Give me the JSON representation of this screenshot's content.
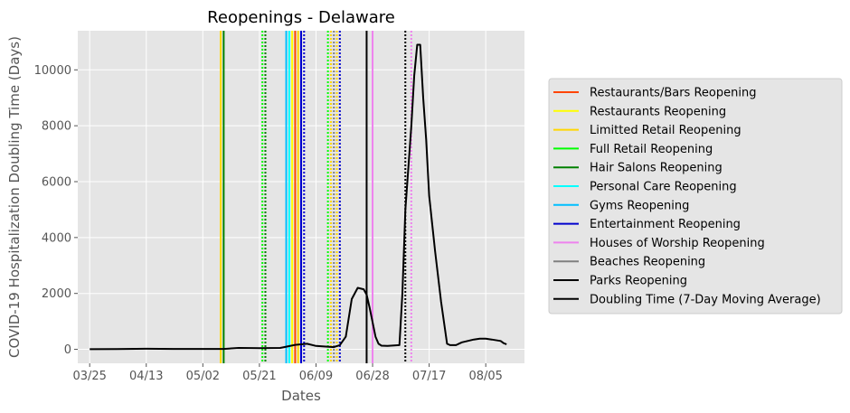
{
  "chart_data": {
    "type": "line",
    "title": "Reopenings - Delaware",
    "xlabel": "Dates",
    "ylabel": "COVID-19 Hospitalization Doubling Time (Days)",
    "x_start": "2020-03-25",
    "xlim": [
      "2020-03-21",
      "2020-08-18"
    ],
    "ylim": [
      -500,
      11400
    ],
    "x_ticks": [
      "03/25",
      "04/13",
      "05/02",
      "05/21",
      "06/09",
      "06/28",
      "07/17",
      "08/05"
    ],
    "y_ticks": [
      0,
      2000,
      4000,
      6000,
      8000,
      10000
    ],
    "grid": true,
    "legend_position": "right",
    "legend": [
      {
        "label": "Restaurants/Bars Reopening",
        "color": "#ff4500"
      },
      {
        "label": "Restaurants Reopening",
        "color": "#ffff00"
      },
      {
        "label": "Limitted Retail Reopening",
        "color": "#ffd700"
      },
      {
        "label": "Full Retail Reopening",
        "color": "#00ff00"
      },
      {
        "label": "Hair Salons Reopening",
        "color": "#008000"
      },
      {
        "label": "Personal Care Reopening",
        "color": "#00ffff"
      },
      {
        "label": "Gyms Reopening",
        "color": "#00bfff"
      },
      {
        "label": "Entertainment Reopening",
        "color": "#0000cd"
      },
      {
        "label": "Houses of Worship Reopening",
        "color": "#ee82ee"
      },
      {
        "label": "Beaches Reopening",
        "color": "#808080"
      },
      {
        "label": "Parks Reopening",
        "color": "#000000"
      },
      {
        "label": "Doubling Time (7-Day Moving Average)",
        "color": "#000000"
      }
    ],
    "vlines": [
      {
        "date": "2020-05-08",
        "color": "#ffff00",
        "style": "solid"
      },
      {
        "date": "2020-05-08",
        "color": "#ffd700",
        "style": "solid"
      },
      {
        "date": "2020-05-09",
        "color": "#008000",
        "style": "solid"
      },
      {
        "date": "2020-05-22",
        "color": "#00ff00",
        "style": "dotted"
      },
      {
        "date": "2020-05-23",
        "color": "#808000",
        "style": "dotted"
      },
      {
        "date": "2020-05-23",
        "color": "#008000",
        "style": "dotted"
      },
      {
        "date": "2020-05-30",
        "color": "#00bfff",
        "style": "solid"
      },
      {
        "date": "2020-05-31",
        "color": "#00ffff",
        "style": "solid"
      },
      {
        "date": "2020-06-01",
        "color": "#ffff00",
        "style": "solid"
      },
      {
        "date": "2020-06-02",
        "color": "#ff4500",
        "style": "solid"
      },
      {
        "date": "2020-06-03",
        "color": "#ffd700",
        "style": "solid"
      },
      {
        "date": "2020-06-04",
        "color": "#0000cd",
        "style": "solid"
      },
      {
        "date": "2020-06-05",
        "color": "#0000cd",
        "style": "dotted"
      },
      {
        "date": "2020-06-13",
        "color": "#00ff00",
        "style": "dotted"
      },
      {
        "date": "2020-06-14",
        "color": "#ffd700",
        "style": "dotted"
      },
      {
        "date": "2020-06-15",
        "color": "#808080",
        "style": "dotted"
      },
      {
        "date": "2020-06-16",
        "color": "#ffd700",
        "style": "dotted"
      },
      {
        "date": "2020-06-17",
        "color": "#0000cd",
        "style": "dotted"
      },
      {
        "date": "2020-06-26",
        "color": "#000000",
        "style": "solid"
      },
      {
        "date": "2020-06-28",
        "color": "#ee82ee",
        "style": "solid"
      },
      {
        "date": "2020-07-09",
        "color": "#000000",
        "style": "dotted"
      },
      {
        "date": "2020-07-11",
        "color": "#ee82ee",
        "style": "dotted"
      }
    ],
    "series": [
      {
        "name": "Doubling Time (7-Day Moving Average)",
        "color": "#000000",
        "dates": [
          "2020-03-25",
          "2020-04-03",
          "2020-04-13",
          "2020-04-22",
          "2020-05-02",
          "2020-05-09",
          "2020-05-14",
          "2020-05-21",
          "2020-05-28",
          "2020-06-02",
          "2020-06-06",
          "2020-06-09",
          "2020-06-15",
          "2020-06-17",
          "2020-06-19",
          "2020-06-21",
          "2020-06-23",
          "2020-06-25",
          "2020-06-26",
          "2020-06-27",
          "2020-06-29",
          "2020-06-30",
          "2020-07-01",
          "2020-07-03",
          "2020-07-07",
          "2020-07-08",
          "2020-07-09",
          "2020-07-11",
          "2020-07-12",
          "2020-07-13",
          "2020-07-14",
          "2020-07-15",
          "2020-07-16",
          "2020-07-17",
          "2020-07-19",
          "2020-07-21",
          "2020-07-23",
          "2020-07-24",
          "2020-07-26",
          "2020-07-28",
          "2020-08-01",
          "2020-08-03",
          "2020-08-04",
          "2020-08-05",
          "2020-08-07",
          "2020-08-10",
          "2020-08-11",
          "2020-08-12"
        ],
        "values": [
          5,
          10,
          20,
          15,
          15,
          15,
          50,
          40,
          50,
          160,
          200,
          120,
          80,
          150,
          450,
          1800,
          2200,
          2150,
          1950,
          1500,
          450,
          200,
          130,
          120,
          150,
          2000,
          5000,
          8000,
          9800,
          10900,
          10900,
          9000,
          7500,
          5500,
          3500,
          1700,
          200,
          150,
          150,
          250,
          350,
          380,
          380,
          380,
          350,
          300,
          220,
          180
        ]
      }
    ]
  }
}
